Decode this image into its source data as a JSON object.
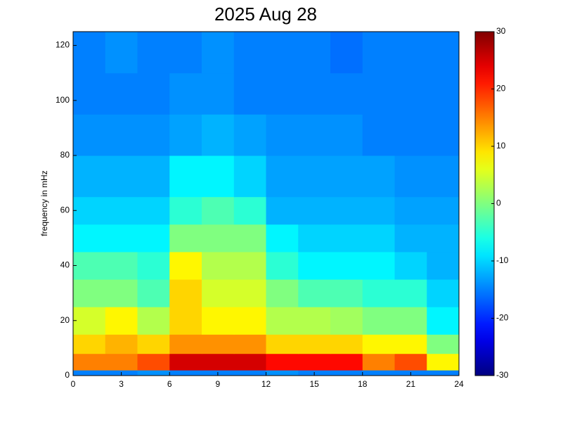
{
  "chart_data": {
    "type": "heatmap",
    "title": "2025 Aug 28",
    "ylabel": "frequency in mHz",
    "colormap": "jet",
    "x_bins": [
      0,
      2,
      4,
      6,
      8,
      10,
      12,
      14,
      16,
      18,
      20,
      22,
      24
    ],
    "y_bins": [
      0,
      2,
      8,
      15,
      25,
      35,
      45,
      55,
      65,
      80,
      95,
      110,
      125
    ],
    "values": [
      [
        -15,
        -15,
        -14,
        -15,
        -15,
        -15,
        -14,
        -15,
        -15,
        -15,
        -15,
        -15
      ],
      [
        15,
        15,
        18,
        25,
        25,
        25,
        22,
        22,
        22,
        15,
        18,
        8
      ],
      [
        10,
        12,
        10,
        14,
        14,
        14,
        10,
        10,
        10,
        8,
        8,
        0
      ],
      [
        5,
        8,
        3,
        10,
        8,
        8,
        3,
        3,
        2,
        0,
        0,
        -8
      ],
      [
        0,
        0,
        -3,
        10,
        5,
        5,
        0,
        -3,
        -3,
        -5,
        -5,
        -10
      ],
      [
        -3,
        -3,
        -5,
        8,
        3,
        3,
        -5,
        -8,
        -8,
        -8,
        -10,
        -12
      ],
      [
        -8,
        -8,
        -8,
        0,
        0,
        0,
        -8,
        -10,
        -10,
        -10,
        -12,
        -12
      ],
      [
        -10,
        -10,
        -10,
        -5,
        -3,
        -5,
        -12,
        -12,
        -12,
        -12,
        -13,
        -13
      ],
      [
        -12,
        -12,
        -12,
        -8,
        -8,
        -10,
        -13,
        -13,
        -13,
        -13,
        -14,
        -14
      ],
      [
        -14,
        -14,
        -14,
        -13,
        -12,
        -13,
        -14,
        -14,
        -14,
        -15,
        -15,
        -15
      ],
      [
        -15,
        -15,
        -15,
        -14,
        -14,
        -15,
        -15,
        -15,
        -15,
        -15,
        -15,
        -15
      ],
      [
        -15,
        -14,
        -15,
        -15,
        -14,
        -15,
        -15,
        -15,
        -16,
        -15,
        -15,
        -15
      ]
    ],
    "xlim": [
      0,
      24
    ],
    "xticks": [
      0,
      3,
      6,
      9,
      12,
      15,
      18,
      21,
      24
    ],
    "ylim": [
      0,
      125
    ],
    "yticks": [
      0,
      20,
      40,
      60,
      80,
      100,
      120
    ],
    "clim": [
      -30,
      30
    ],
    "cticks": [
      -30,
      -20,
      -10,
      0,
      10,
      20,
      30
    ]
  }
}
